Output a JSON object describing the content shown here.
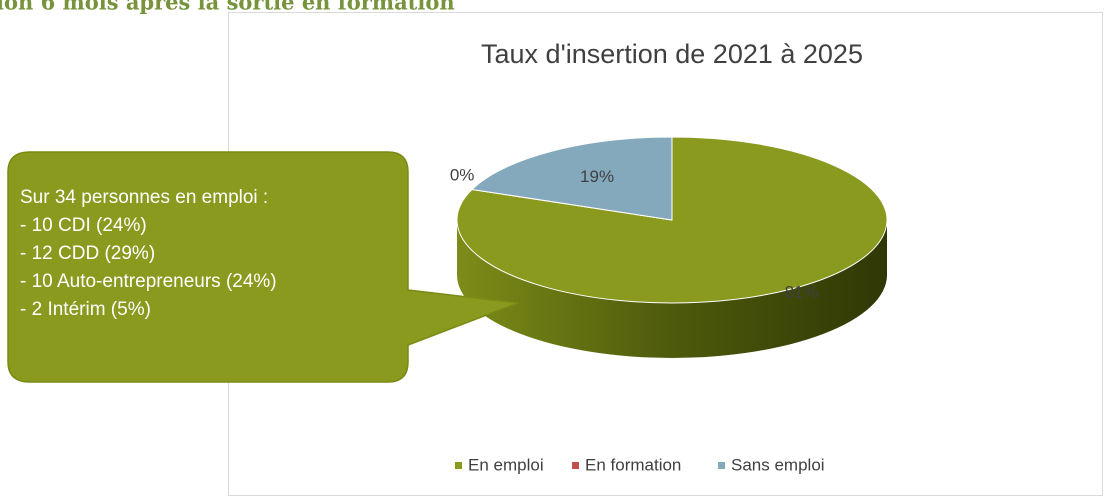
{
  "heading": "ion 6 mois après la sortie en formation",
  "chart_data": {
    "type": "pie",
    "title": "Taux d'insertion de 2021 à 2025",
    "categories": [
      "En emploi",
      "En formation",
      "Sans emploi"
    ],
    "values": [
      81,
      0,
      19
    ],
    "value_labels": [
      "81%",
      "0%",
      "19%"
    ],
    "colors": [
      "#8a9a1e",
      "#c0504d",
      "#84a9bc"
    ],
    "legend": "bottom",
    "annotation": {
      "lines": [
        "Sur 34 personnes en emploi :",
        "- 10 CDI (24%)",
        "- 12 CDD (29%)",
        "- 10 Auto-entrepreneurs (24%)",
        "- 2 Intérim (5%)"
      ]
    }
  }
}
